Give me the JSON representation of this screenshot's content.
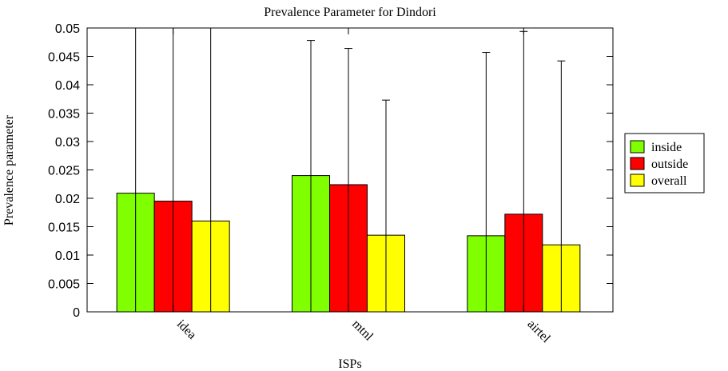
{
  "chart_data": {
    "type": "bar",
    "title": "Prevalence Parameter for Dindori",
    "xlabel": "ISPs",
    "ylabel": "Prevalence parameter",
    "categories": [
      "idea",
      "mtnl",
      "airtel"
    ],
    "ylim": [
      0,
      0.05
    ],
    "yticks": [
      "0",
      "0.005",
      "0.01",
      "0.015",
      "0.02",
      "0.025",
      "0.03",
      "0.035",
      "0.04",
      "0.045",
      "0.05"
    ],
    "legend_position": "right",
    "grid": false,
    "series": [
      {
        "name": "inside",
        "color": "#7fff00",
        "values": [
          0.0209,
          0.024,
          0.0134
        ],
        "error_upper": [
          0.05,
          0.0478,
          0.0457
        ]
      },
      {
        "name": "outside",
        "color": "#ff0000",
        "values": [
          0.0195,
          0.0224,
          0.0172
        ],
        "error_upper": [
          0.05,
          0.0464,
          0.0494
        ]
      },
      {
        "name": "overall",
        "color": "#ffff00",
        "values": [
          0.016,
          0.0135,
          0.0118
        ],
        "error_upper": [
          0.05,
          0.0373,
          0.0442
        ]
      }
    ]
  }
}
